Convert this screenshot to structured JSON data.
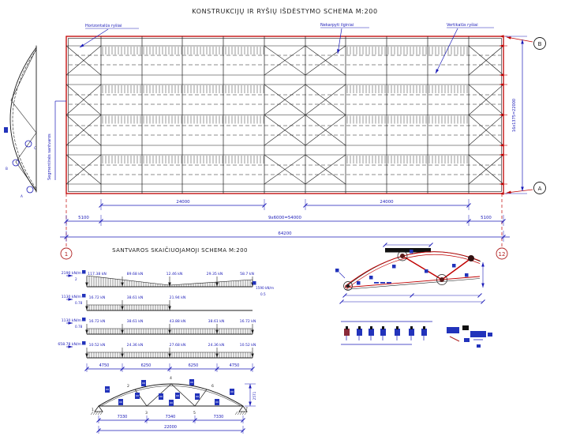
{
  "title": "KONSTRUKCIJŲ IR RYŠIŲ IŠDĖSTYMO SCHEMA M:200",
  "calc_title": "SANTVAROS SKAIČIUOJAMOJI SCHEMA M:200",
  "plan": {
    "label_horizontal_braces": "Horizontalūs ryšiai",
    "label_continuous_purlins": "Nekarpyti ilginiai",
    "label_vertical_braces": "Vertikalūs ryšiai",
    "label_segment_trusses": "Segmentinės santvaros",
    "axis_left": "1",
    "axis_right": "12",
    "axis_top": "B",
    "axis_bottom": "A",
    "dim_span_left": "24000",
    "dim_span_right": "24000",
    "dim_end_left": "5100",
    "dim_bays": "9x6000=54000",
    "dim_end_right": "5100",
    "dim_total": "64200",
    "dim_height": "16x1375=22000",
    "elev_node_top": "C",
    "elev_node_mid": "B",
    "elev_node_bottom": "A"
  },
  "loads": {
    "row1": {
      "q": "2190 kN/m",
      "q_sub": "2",
      "v1": "117.38 kN",
      "v2": "89.68 kN",
      "v3": "12.46 kN",
      "v4": "29.35 kN",
      "v5": "58.7 kN",
      "q_right": "1590 kN/m",
      "q_right_sub": "0.5"
    },
    "row2": {
      "q": "1130 kN/m",
      "q_sub": "0.78",
      "v1": "16.72 kN",
      "v2": "38.61 kN",
      "v3": "21.94 kN"
    },
    "row3": {
      "q": "1130 kN/m",
      "q_sub": "0.78",
      "v1": "16.72 kN",
      "v2": "38.61 kN",
      "v3": "43.88 kN",
      "v4": "38.61 kN",
      "v5": "16.72 kN"
    },
    "row4": {
      "q": "658.78 kN/m",
      "v1": "10.52 kN",
      "v2": "24.36 kN",
      "v3": "27.68 kN",
      "v4": "24.36 kN",
      "v5": "10.52 kN"
    },
    "dim1": "4750",
    "dim2": "6250",
    "dim3": "6250",
    "dim4": "4750"
  },
  "truss": {
    "n1": "1",
    "n2": "2",
    "n3": "3",
    "n4": "4",
    "n5": "5",
    "n6": "6",
    "n7": "7",
    "dim1": "7330",
    "dim2": "7340",
    "dim3": "7330",
    "dim_total": "22000",
    "dim_rise": "2571"
  }
}
